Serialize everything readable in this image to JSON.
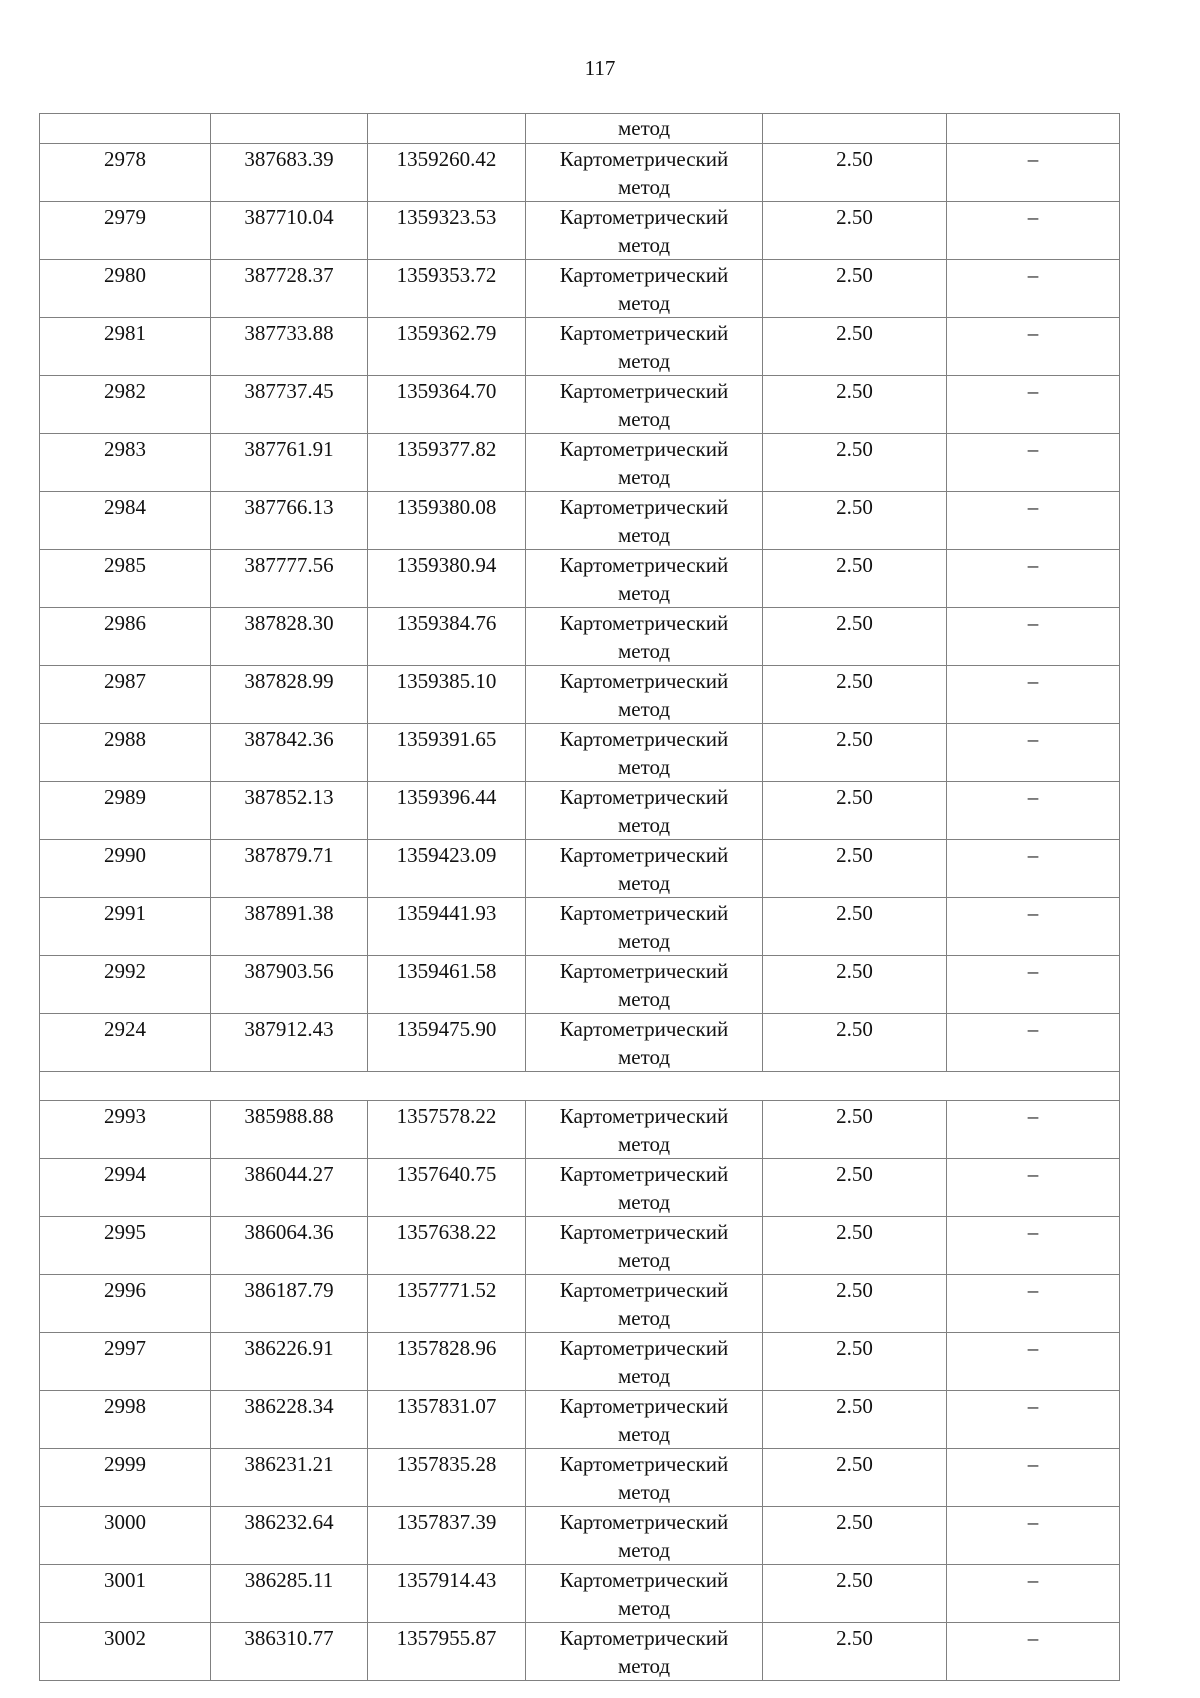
{
  "page_number": "117",
  "continuation_row": {
    "method_tail": "метод"
  },
  "method_label": [
    "Картометрический",
    "метод"
  ],
  "group1": [
    {
      "n": "2978",
      "x": "387683.39",
      "y": "1359260.42",
      "acc": "2.50",
      "note": "–"
    },
    {
      "n": "2979",
      "x": "387710.04",
      "y": "1359323.53",
      "acc": "2.50",
      "note": "–"
    },
    {
      "n": "2980",
      "x": "387728.37",
      "y": "1359353.72",
      "acc": "2.50",
      "note": "–"
    },
    {
      "n": "2981",
      "x": "387733.88",
      "y": "1359362.79",
      "acc": "2.50",
      "note": "–"
    },
    {
      "n": "2982",
      "x": "387737.45",
      "y": "1359364.70",
      "acc": "2.50",
      "note": "–"
    },
    {
      "n": "2983",
      "x": "387761.91",
      "y": "1359377.82",
      "acc": "2.50",
      "note": "–"
    },
    {
      "n": "2984",
      "x": "387766.13",
      "y": "1359380.08",
      "acc": "2.50",
      "note": "–"
    },
    {
      "n": "2985",
      "x": "387777.56",
      "y": "1359380.94",
      "acc": "2.50",
      "note": "–"
    },
    {
      "n": "2986",
      "x": "387828.30",
      "y": "1359384.76",
      "acc": "2.50",
      "note": "–"
    },
    {
      "n": "2987",
      "x": "387828.99",
      "y": "1359385.10",
      "acc": "2.50",
      "note": "–"
    },
    {
      "n": "2988",
      "x": "387842.36",
      "y": "1359391.65",
      "acc": "2.50",
      "note": "–"
    },
    {
      "n": "2989",
      "x": "387852.13",
      "y": "1359396.44",
      "acc": "2.50",
      "note": "–"
    },
    {
      "n": "2990",
      "x": "387879.71",
      "y": "1359423.09",
      "acc": "2.50",
      "note": "–"
    },
    {
      "n": "2991",
      "x": "387891.38",
      "y": "1359441.93",
      "acc": "2.50",
      "note": "–"
    },
    {
      "n": "2992",
      "x": "387903.56",
      "y": "1359461.58",
      "acc": "2.50",
      "note": "–"
    },
    {
      "n": "2924",
      "x": "387912.43",
      "y": "1359475.90",
      "acc": "2.50",
      "note": "–"
    }
  ],
  "group2": [
    {
      "n": "2993",
      "x": "385988.88",
      "y": "1357578.22",
      "acc": "2.50",
      "note": "–"
    },
    {
      "n": "2994",
      "x": "386044.27",
      "y": "1357640.75",
      "acc": "2.50",
      "note": "–"
    },
    {
      "n": "2995",
      "x": "386064.36",
      "y": "1357638.22",
      "acc": "2.50",
      "note": "–"
    },
    {
      "n": "2996",
      "x": "386187.79",
      "y": "1357771.52",
      "acc": "2.50",
      "note": "–"
    },
    {
      "n": "2997",
      "x": "386226.91",
      "y": "1357828.96",
      "acc": "2.50",
      "note": "–"
    },
    {
      "n": "2998",
      "x": "386228.34",
      "y": "1357831.07",
      "acc": "2.50",
      "note": "–"
    },
    {
      "n": "2999",
      "x": "386231.21",
      "y": "1357835.28",
      "acc": "2.50",
      "note": "–"
    },
    {
      "n": "3000",
      "x": "386232.64",
      "y": "1357837.39",
      "acc": "2.50",
      "note": "–"
    },
    {
      "n": "3001",
      "x": "386285.11",
      "y": "1357914.43",
      "acc": "2.50",
      "note": "–"
    },
    {
      "n": "3002",
      "x": "386310.77",
      "y": "1357955.87",
      "acc": "2.50",
      "note": "–"
    }
  ]
}
